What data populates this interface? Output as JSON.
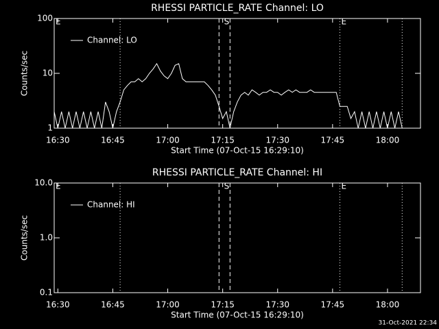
{
  "chart_data": [
    {
      "type": "line",
      "title": "RHESSI PARTICLE_RATE Channel: LO",
      "x_label": "Start Time (07-Oct-15 16:29:10)",
      "y_label": "Counts/sec",
      "log_scale": true,
      "legend": "upper left",
      "x": [
        "16:29",
        "16:30",
        "16:31",
        "16:32",
        "16:33",
        "16:34",
        "16:35",
        "16:36",
        "16:37",
        "16:38",
        "16:39",
        "16:40",
        "16:41",
        "16:42",
        "16:43",
        "16:44",
        "16:45",
        "16:46",
        "16:47",
        "16:48",
        "16:49",
        "16:50",
        "16:51",
        "16:52",
        "16:53",
        "16:54",
        "16:55",
        "16:56",
        "16:57",
        "16:58",
        "16:59",
        "17:00",
        "17:01",
        "17:02",
        "17:03",
        "17:04",
        "17:05",
        "17:06",
        "17:07",
        "17:08",
        "17:09",
        "17:10",
        "17:11",
        "17:12",
        "17:13",
        "17:14",
        "17:15",
        "17:16",
        "17:17",
        "17:18",
        "17:19",
        "17:20",
        "17:21",
        "17:22",
        "17:23",
        "17:24",
        "17:25",
        "17:26",
        "17:27",
        "17:28",
        "17:29",
        "17:30",
        "17:31",
        "17:32",
        "17:33",
        "17:34",
        "17:35",
        "17:36",
        "17:37",
        "17:38",
        "17:39",
        "17:40",
        "17:41",
        "17:42",
        "17:43",
        "17:44",
        "17:45",
        "17:46",
        "17:47",
        "17:48",
        "17:49",
        "17:50",
        "17:51",
        "17:52",
        "17:53",
        "17:54",
        "17:55",
        "17:56",
        "17:57",
        "17:58",
        "17:59",
        "18:00",
        "18:01",
        "18:02",
        "18:03",
        "18:04"
      ],
      "series": [
        {
          "name": "Channel: LO",
          "color": "#ffffff",
          "values": [
            2,
            1,
            2,
            1,
            2,
            1,
            2,
            1,
            2,
            1,
            2,
            1,
            2,
            1,
            3,
            2,
            1,
            2,
            3,
            5,
            6,
            7,
            7,
            8,
            7,
            8,
            10,
            12,
            15,
            11,
            9,
            8,
            10,
            14,
            15,
            8,
            7,
            7,
            7,
            7,
            7,
            7,
            6,
            5,
            4,
            2.5,
            1.5,
            2,
            1,
            2,
            3,
            4,
            4.5,
            4,
            5,
            4.5,
            4,
            4.5,
            4.5,
            5,
            4.5,
            4.5,
            4,
            4.5,
            5,
            4.5,
            5,
            4.5,
            4.5,
            4.5,
            5,
            4.5,
            4.5,
            4.5,
            4.5,
            4.5,
            4.5,
            4.5,
            2.5,
            2.5,
            2.5,
            1.5,
            2,
            1,
            2,
            1,
            2,
            1,
            2,
            1,
            2,
            1,
            2,
            1,
            2,
            1
          ]
        }
      ],
      "xlim": [
        "16:29",
        "18:09"
      ],
      "xticks": [
        "16:30",
        "16:45",
        "17:00",
        "17:15",
        "17:30",
        "17:45",
        "18:00"
      ],
      "ylim": [
        1,
        100
      ],
      "yticks": [
        1,
        10,
        100
      ],
      "vlines": [
        {
          "x": "16:47",
          "style": "dotted"
        },
        {
          "x": "17:14",
          "style": "dashed"
        },
        {
          "x": "17:17",
          "style": "dashed"
        },
        {
          "x": "17:47",
          "style": "dotted"
        },
        {
          "x": "18:04",
          "style": "dotted"
        }
      ],
      "vline_labels": [
        {
          "x": "16:29",
          "label": "E"
        },
        {
          "x": "17:15",
          "label": "S"
        },
        {
          "x": "17:47",
          "label": "E"
        }
      ]
    },
    {
      "type": "line",
      "title": "RHESSI PARTICLE_RATE Channel: HI",
      "x_label": "Start Time (07-Oct-15 16:29:10)",
      "y_label": "Counts/sec",
      "log_scale": true,
      "legend": "upper left",
      "x": [],
      "series": [
        {
          "name": "Channel: HI",
          "color": "#ffffff",
          "values": []
        }
      ],
      "xlim": [
        "16:29",
        "18:09"
      ],
      "xticks": [
        "16:30",
        "16:45",
        "17:00",
        "17:15",
        "17:30",
        "17:45",
        "18:00"
      ],
      "ylim": [
        0.1,
        10
      ],
      "yticks": [
        0.1,
        {
          "value": 1,
          "label": "1.0"
        },
        {
          "value": 10,
          "label": "10.0"
        }
      ],
      "vlines": [
        {
          "x": "16:47",
          "style": "dotted"
        },
        {
          "x": "17:14",
          "style": "dashed"
        },
        {
          "x": "17:17",
          "style": "dashed"
        },
        {
          "x": "17:47",
          "style": "dotted"
        },
        {
          "x": "18:04",
          "style": "dotted"
        }
      ],
      "vline_labels": [
        {
          "x": "16:29",
          "label": "E"
        },
        {
          "x": "17:15",
          "label": "S"
        },
        {
          "x": "17:47",
          "label": "E"
        }
      ]
    }
  ],
  "footer": "31-Oct-2021 22:34"
}
